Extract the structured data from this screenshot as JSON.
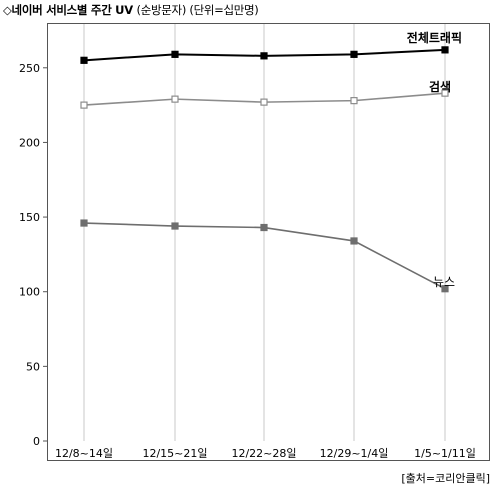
{
  "title": "◇네이버 서비스별 주간 UV",
  "title_unit": "(순방문자) (단위=십만명)",
  "source": "[출처=코리안클릭]",
  "chart_data": {
    "type": "line",
    "categories": [
      "12/8~14일",
      "12/15~21일",
      "12/22~28일",
      "12/29~1/4일",
      "1/5~1/11일"
    ],
    "series": [
      {
        "name": "전체트래픽",
        "values": [
          255,
          259,
          258,
          259,
          262
        ],
        "color": "#000000",
        "marker_fill": "#000000"
      },
      {
        "name": "검색",
        "values": [
          225,
          229,
          227,
          228,
          233
        ],
        "color": "#8c8c8c",
        "marker_fill": "#ffffff"
      },
      {
        "name": "뉴스",
        "values": [
          146,
          144,
          143,
          134,
          102
        ],
        "color": "#6e6e6e",
        "marker_fill": "#6e6e6e"
      }
    ],
    "yticks": [
      0,
      50,
      100,
      150,
      200,
      250
    ],
    "ylim": [
      0,
      280
    ],
    "grid": "vertical"
  }
}
